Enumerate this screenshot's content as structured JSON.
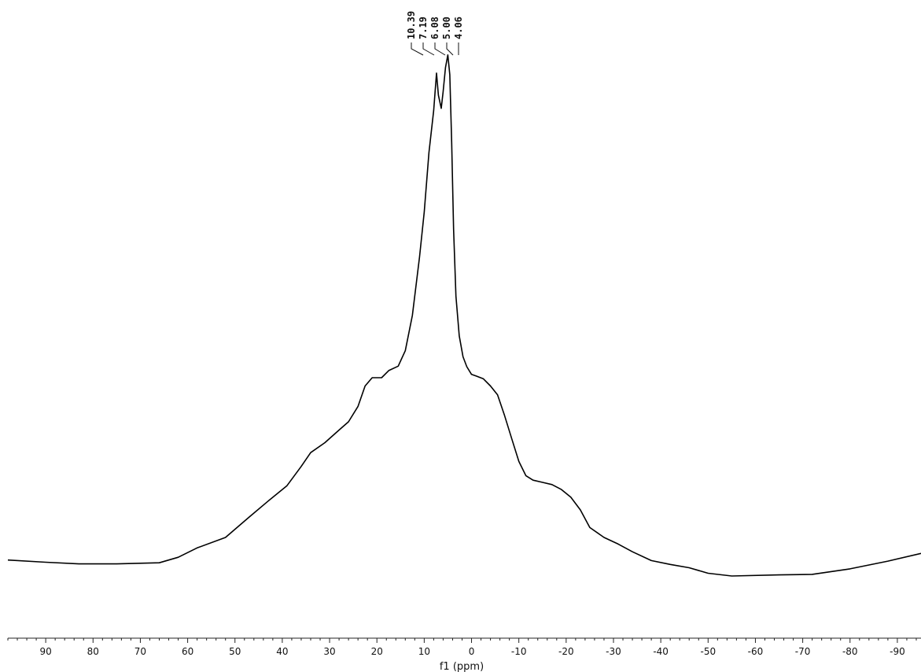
{
  "chart_data": {
    "type": "line",
    "title": "",
    "xlabel": "f1 (ppm)",
    "ylabel": "",
    "x_reversed": true,
    "xlim": [
      98,
      -95
    ],
    "ylim": [
      0,
      100
    ],
    "grid": false,
    "y_axis_shown": false,
    "line_color": "#000000",
    "x_ticks": [
      90,
      80,
      70,
      60,
      50,
      40,
      30,
      20,
      10,
      0,
      -10,
      -20,
      -30,
      -40,
      -50,
      -60,
      -70,
      -80,
      -90
    ],
    "x_tick_labels": [
      "90",
      "80",
      "70",
      "60",
      "50",
      "40",
      "30",
      "20",
      "10",
      "0",
      "-10",
      "-20",
      "-30",
      "-40",
      "-50",
      "-60",
      "-70",
      "-80",
      "-90"
    ],
    "x_minor_tick_step": 2,
    "peak_labels": [
      "10.39",
      "7.19",
      "6.08",
      "5.00",
      "4.06"
    ],
    "series": [
      {
        "x": [
          98,
          90,
          83,
          75,
          66,
          62,
          58,
          52,
          47,
          43,
          39,
          36,
          34,
          31,
          28,
          26,
          24,
          22.5,
          21,
          19,
          17.5,
          15.5,
          14,
          12.5,
          11,
          10,
          9,
          8,
          7.4,
          7,
          6.4,
          6,
          5.5,
          5,
          4.6,
          4.2,
          3.8,
          3.3,
          2.6,
          1.8,
          1,
          0,
          -1,
          -2.5,
          -4,
          -5.5,
          -7,
          -8.5,
          -10,
          -11.5,
          -13,
          -15,
          -17,
          -19,
          -21,
          -23,
          -25,
          -28,
          -31,
          -34,
          -38,
          -42,
          -46,
          -50,
          -55,
          -65,
          -72,
          -80,
          -88,
          -95
        ],
        "y": [
          6.9,
          6.5,
          6.2,
          6.2,
          6.4,
          7.4,
          9.1,
          11.0,
          14.7,
          17.6,
          20.4,
          23.9,
          26.4,
          28.2,
          30.5,
          32.0,
          34.8,
          38.5,
          40.0,
          40.0,
          41.3,
          42.1,
          44.9,
          51.3,
          61.9,
          70.1,
          80.9,
          88.5,
          95.3,
          91.3,
          88.9,
          91.9,
          96.3,
          98.6,
          95.0,
          82.6,
          67.0,
          54.8,
          47.6,
          43.8,
          42.0,
          40.6,
          40.3,
          39.8,
          38.5,
          36.9,
          33.1,
          28.9,
          24.8,
          22.2,
          21.4,
          21.0,
          20.6,
          19.7,
          18.3,
          16.0,
          12.8,
          11.0,
          9.8,
          8.4,
          6.8,
          6.1,
          5.5,
          4.5,
          4.0,
          4.2,
          4.3,
          5.3,
          6.7,
          8.1
        ]
      }
    ]
  }
}
